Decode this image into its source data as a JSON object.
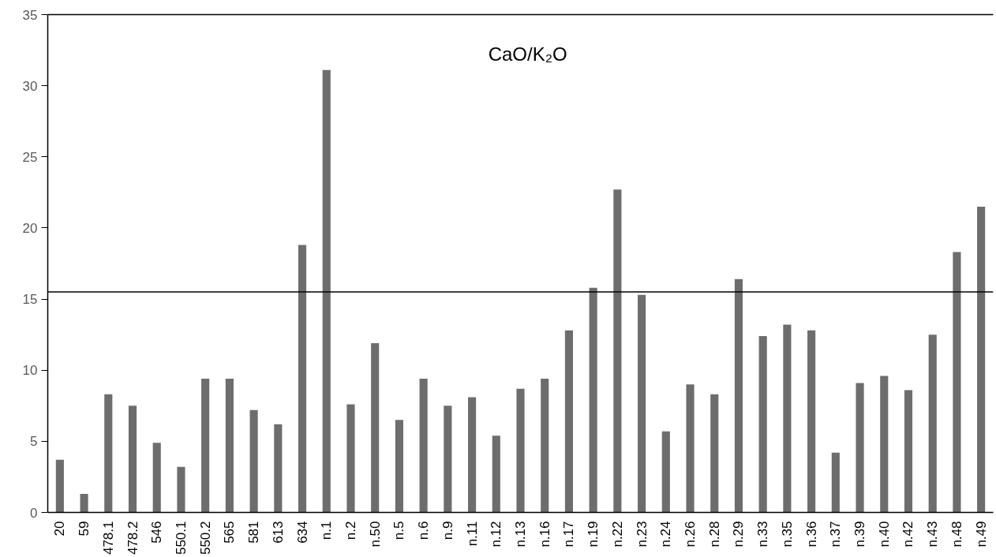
{
  "chart_data": {
    "type": "bar",
    "title": "CaO/K₂O",
    "categories": [
      "20",
      "59",
      "478.1",
      "478.2",
      "546",
      "550.1",
      "550.2",
      "565",
      "581",
      "613",
      "634",
      "n.1",
      "n.2",
      "n.50",
      "n.5",
      "n.6",
      "n.9",
      "n.11",
      "n.12",
      "n.13",
      "n.16",
      "n.17",
      "n.19",
      "n.22",
      "n.23",
      "n.24",
      "n.26",
      "n.28",
      "n.29",
      "n.33",
      "n.35",
      "n.36",
      "n.37",
      "n.39",
      "n.40",
      "n.42",
      "n.43",
      "n.48",
      "n.49"
    ],
    "values": [
      3.7,
      1.3,
      8.3,
      7.5,
      4.9,
      3.2,
      9.4,
      9.4,
      7.2,
      6.2,
      18.8,
      31.1,
      7.6,
      11.9,
      6.5,
      9.4,
      7.5,
      8.1,
      5.4,
      8.7,
      9.4,
      12.8,
      15.8,
      22.7,
      15.3,
      5.7,
      9.0,
      8.3,
      16.4,
      12.4,
      13.2,
      12.8,
      4.2,
      9.1,
      9.6,
      8.6,
      12.5,
      18.3,
      21.5
    ],
    "color": "#6d6d6d",
    "ylim": [
      0,
      35
    ],
    "yticks": [
      0,
      5,
      10,
      15,
      20,
      25,
      30,
      35
    ],
    "ref_lines": [
      {
        "axis": "y",
        "value": 15.5,
        "color": "#000000"
      }
    ],
    "grid": false
  }
}
